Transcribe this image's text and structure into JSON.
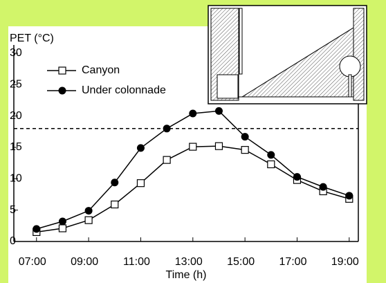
{
  "chart_data": {
    "type": "line",
    "y_label": "PET (°C)",
    "x_label": "Time (h)",
    "x": [
      7,
      8,
      9,
      10,
      11,
      12,
      13,
      14,
      15,
      16,
      17,
      18,
      19
    ],
    "series": [
      {
        "name": "Canyon",
        "color": "#000000",
        "marker": "open-square",
        "values": [
          1.5,
          2.1,
          3.4,
          5.9,
          9.3,
          13.0,
          15.1,
          15.2,
          14.6,
          12.3,
          9.8,
          8.0,
          6.8
        ]
      },
      {
        "name": "Under colonnade",
        "color": "#000000",
        "marker": "filled-circle",
        "values": [
          2.0,
          3.2,
          4.9,
          9.4,
          14.9,
          18.0,
          20.4,
          20.8,
          16.7,
          13.8,
          10.3,
          8.7,
          7.3
        ]
      }
    ],
    "reference_line": 18,
    "xlim": [
      6.13,
      19.35
    ],
    "ylim": [
      0,
      30
    ],
    "xticks": [
      {
        "value": 7,
        "label": "07:00"
      },
      {
        "value": 9,
        "label": "09:00"
      },
      {
        "value": 11,
        "label": "11:00"
      },
      {
        "value": 13,
        "label": "13:00"
      },
      {
        "value": 15,
        "label": "15:00"
      },
      {
        "value": 17,
        "label": "17:00"
      },
      {
        "value": 19,
        "label": "19:00"
      }
    ],
    "yticks": [
      0,
      5,
      10,
      15,
      20,
      25,
      30
    ],
    "legend": "top-left"
  }
}
